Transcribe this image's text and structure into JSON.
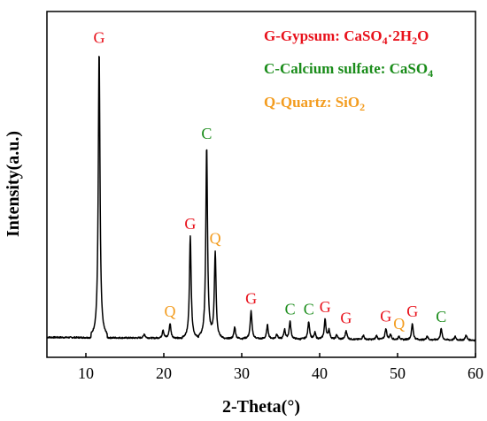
{
  "chart_data": {
    "type": "line",
    "xlabel": "2-Theta(°)",
    "ylabel": "Intensity(a.u.)",
    "xlim": [
      5,
      60
    ],
    "ylim": [
      0,
      1000
    ],
    "xticks": [
      "10",
      "20",
      "30",
      "40",
      "50",
      "60"
    ],
    "xtick_values": [
      10,
      20,
      30,
      40,
      50,
      60
    ],
    "grid": false,
    "legend_position": "top-right",
    "colors": {
      "G": "#e8111b",
      "C": "#1a8c1a",
      "Q": "#f39c1f",
      "line": "#000000"
    },
    "legend": [
      {
        "key": "G",
        "parts": [
          {
            "t": "G-Gypsum: CaSO"
          },
          {
            "t": "4",
            "sub": true
          },
          {
            "t": "·2H"
          },
          {
            "t": "2",
            "sub": true
          },
          {
            "t": "O"
          }
        ]
      },
      {
        "key": "C",
        "parts": [
          {
            "t": "C-Calcium sulfate: CaSO"
          },
          {
            "t": "4",
            "sub": true
          }
        ]
      },
      {
        "key": "Q",
        "parts": [
          {
            "t": "Q-Quartz: SiO"
          },
          {
            "t": "2",
            "sub": true
          }
        ]
      }
    ],
    "peaks": [
      {
        "x": 11.7,
        "y": 985,
        "label": "G"
      },
      {
        "x": 20.8,
        "y": 50,
        "label": "Q"
      },
      {
        "x": 23.4,
        "y": 350,
        "label": "G"
      },
      {
        "x": 25.5,
        "y": 660,
        "label": "C"
      },
      {
        "x": 26.6,
        "y": 300,
        "label": "Q"
      },
      {
        "x": 31.2,
        "y": 95,
        "label": "G"
      },
      {
        "x": 36.2,
        "y": 60,
        "label": "C"
      },
      {
        "x": 38.6,
        "y": 60,
        "label": "C"
      },
      {
        "x": 40.7,
        "y": 68,
        "label": "G"
      },
      {
        "x": 43.4,
        "y": 30,
        "label": "G"
      },
      {
        "x": 48.5,
        "y": 38,
        "label": "G"
      },
      {
        "x": 50.2,
        "y": 12,
        "label": "Q"
      },
      {
        "x": 51.9,
        "y": 55,
        "label": "G"
      },
      {
        "x": 55.6,
        "y": 38,
        "label": "C"
      }
    ],
    "minor_peaks": [
      {
        "x": 17.5,
        "y": 14
      },
      {
        "x": 19.9,
        "y": 28
      },
      {
        "x": 29.1,
        "y": 40
      },
      {
        "x": 33.3,
        "y": 48
      },
      {
        "x": 34.5,
        "y": 18
      },
      {
        "x": 35.5,
        "y": 32
      },
      {
        "x": 39.4,
        "y": 22
      },
      {
        "x": 41.2,
        "y": 32
      },
      {
        "x": 42.2,
        "y": 16
      },
      {
        "x": 45.6,
        "y": 15
      },
      {
        "x": 47.3,
        "y": 14
      },
      {
        "x": 49.1,
        "y": 18
      },
      {
        "x": 53.8,
        "y": 14
      },
      {
        "x": 57.4,
        "y": 12
      },
      {
        "x": 58.8,
        "y": 18
      }
    ]
  }
}
